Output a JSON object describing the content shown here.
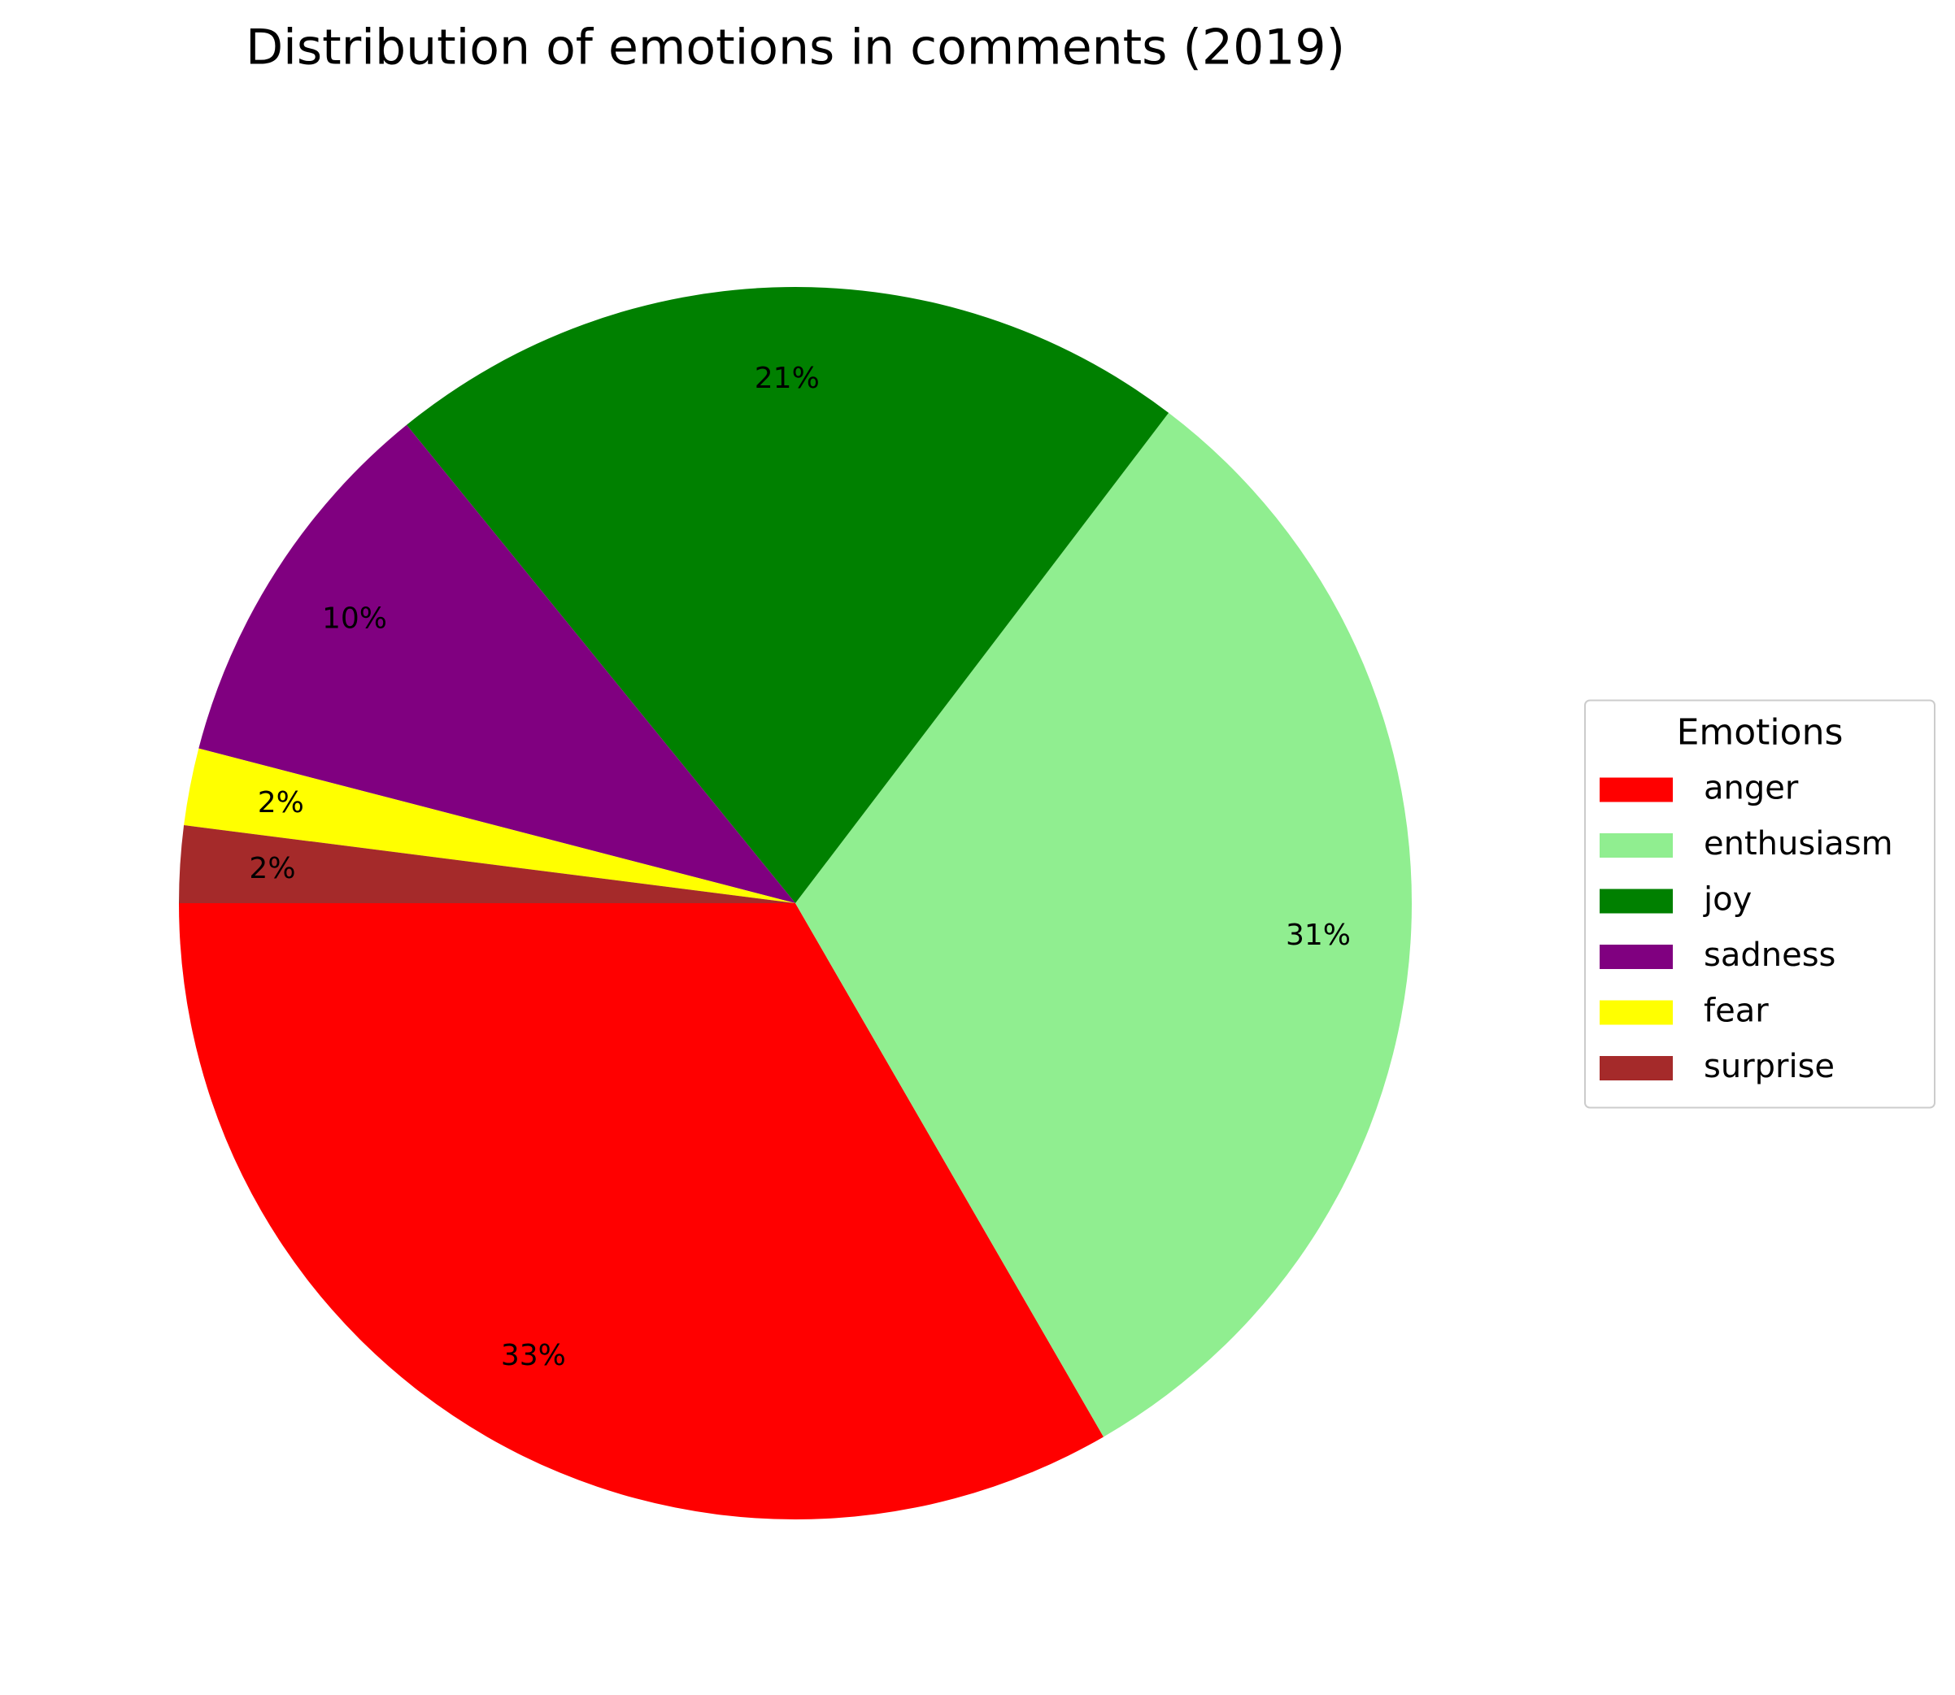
{
  "chart_data": {
    "type": "pie",
    "title": "Distribution of emotions in comments (2019)",
    "categories": [
      "anger",
      "enthusiasm",
      "joy",
      "sadness",
      "fear",
      "surprise"
    ],
    "values": [
      33,
      31,
      21,
      10,
      2,
      2
    ],
    "value_labels": [
      "33%",
      "31%",
      "21%",
      "10%",
      "2%",
      "2%"
    ],
    "colors": [
      "#ff0000",
      "#90ee90",
      "#008000",
      "#800080",
      "#ffff00",
      "#a52a2a"
    ],
    "legend_title": "Emotions",
    "legend": "center right"
  }
}
